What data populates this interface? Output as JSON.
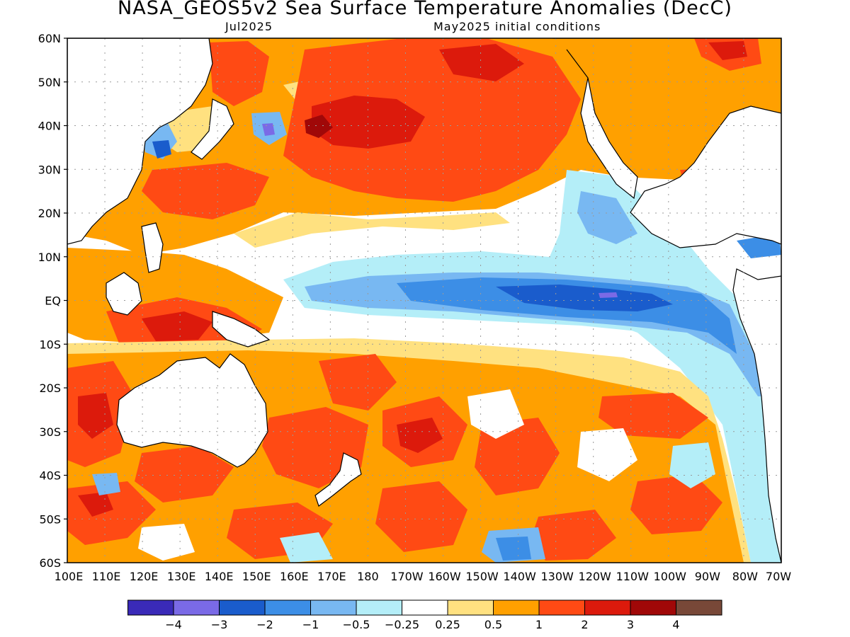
{
  "title": "NASA_GEOS5v2 Sea Surface Temperature Anomalies (DecC)",
  "subtitle_left": "Jul2025",
  "subtitle_right": "May2025 initial conditions",
  "lat_labels": [
    "60N",
    "50N",
    "40N",
    "30N",
    "20N",
    "10N",
    "EQ",
    "10S",
    "20S",
    "30S",
    "40S",
    "50S",
    "60S"
  ],
  "lon_labels": [
    "100E",
    "110E",
    "120E",
    "130E",
    "140E",
    "150E",
    "160E",
    "170E",
    "180",
    "170W",
    "160W",
    "150W",
    "140W",
    "130W",
    "120W",
    "110W",
    "100W",
    "90W",
    "80W",
    "70W"
  ],
  "colorbar": {
    "colors": [
      "#3a2ab8",
      "#7a6ae6",
      "#1a5ccc",
      "#3c8ee6",
      "#78b8f2",
      "#b4eef8",
      "#ffffff",
      "#ffe180",
      "#ffa000",
      "#ff4a14",
      "#dc1a0c",
      "#a00808",
      "#784838"
    ],
    "labels": [
      "−4",
      "−3",
      "−2",
      "−1",
      "−0.5",
      "−0.25",
      "0.25",
      "0.5",
      "1",
      "2",
      "3",
      "4"
    ]
  },
  "palette": {
    "deep_neg": "#3a2ab8",
    "strong_neg": "#1a5ccc",
    "neg": "#3c8ee6",
    "weak_neg": "#78b8f2",
    "faint_neg": "#b4eef8",
    "neutral": "#ffffff",
    "faint_pos": "#ffe180",
    "weak_pos": "#ffa000",
    "pos": "#ff4a14",
    "strong_pos": "#dc1a0c",
    "deep_pos": "#a00808"
  }
}
